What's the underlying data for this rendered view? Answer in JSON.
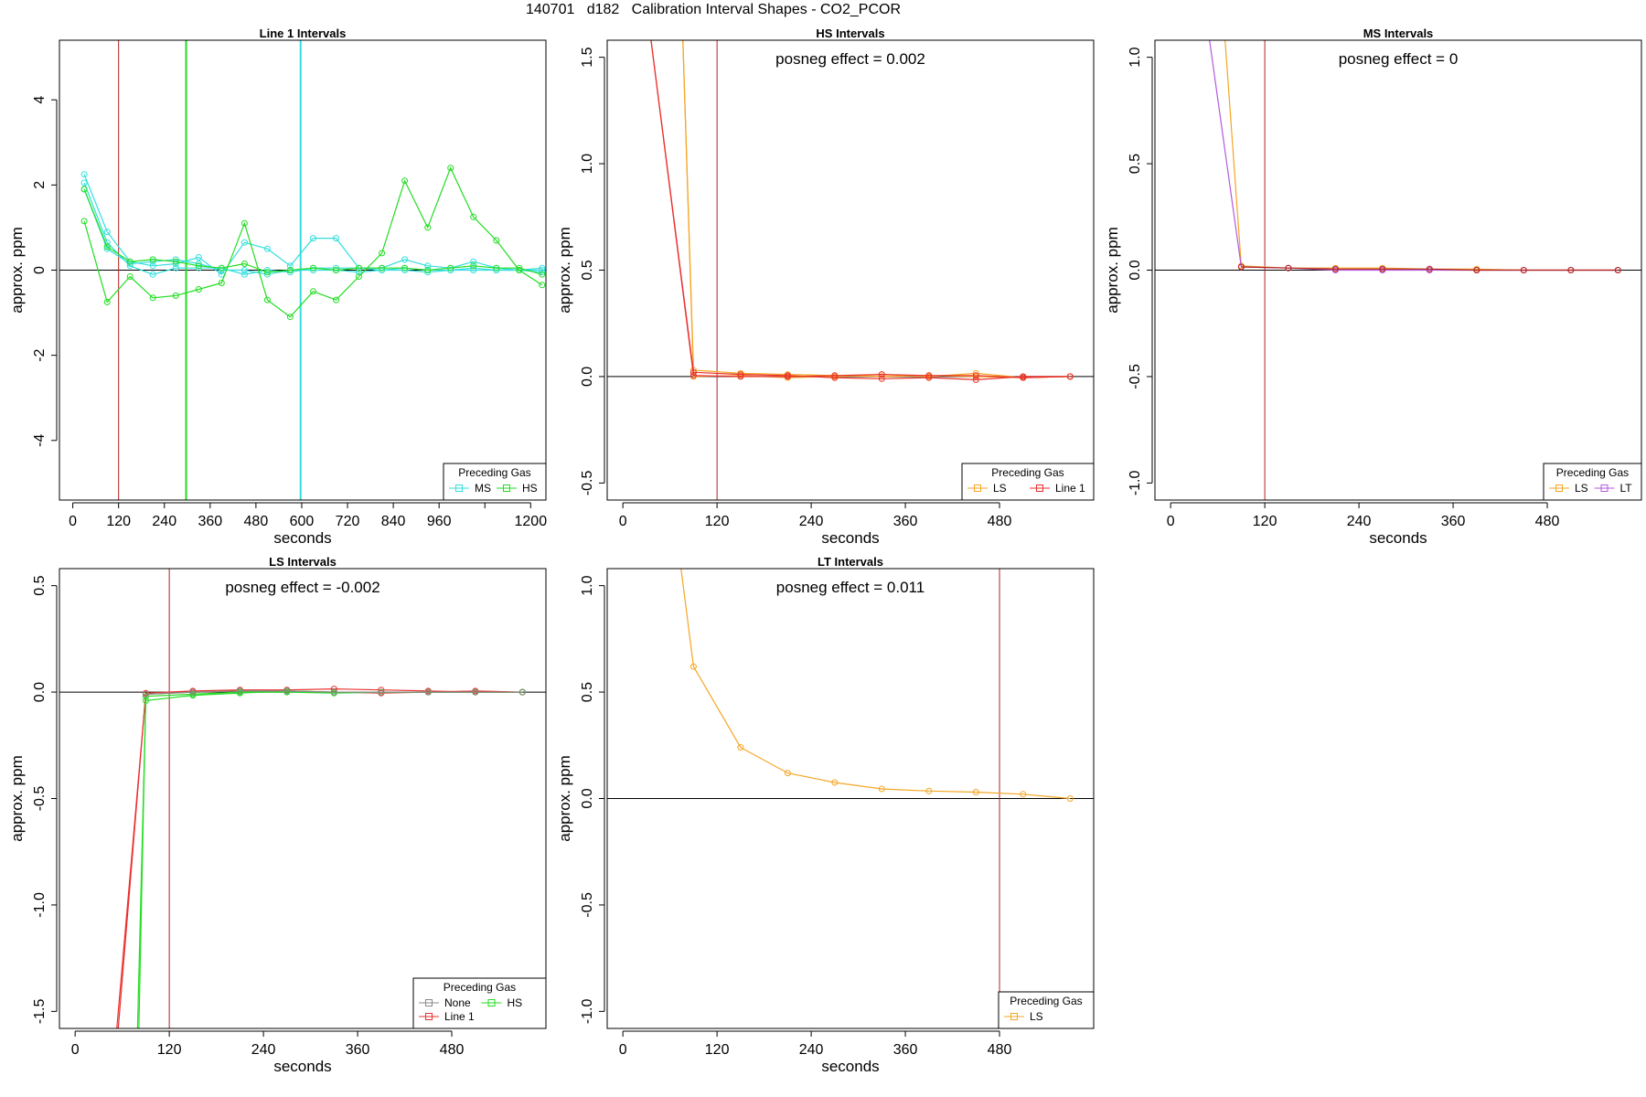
{
  "figure": {
    "main_title": "140701   d182   Calibration Interval Shapes - CO2_PCOR"
  },
  "colors": {
    "red": "#e8312f",
    "green": "#22dd22",
    "cyan": "#33dddd",
    "orange": "#f5a623",
    "purple": "#b35ae0",
    "gray": "#888888",
    "marker": "#b22222"
  },
  "chart_data": [
    {
      "id": "line1",
      "type": "line",
      "title": "Line 1 Intervals",
      "xlabel": "seconds",
      "ylabel": "approx. ppm",
      "xlim": [
        -35,
        1240
      ],
      "ylim": [
        -5.4,
        5.4
      ],
      "xticks": [
        0,
        120,
        240,
        360,
        480,
        600,
        720,
        840,
        960,
        1080,
        1200
      ],
      "xtick_labels": [
        "0",
        "120",
        "240",
        "360",
        "480",
        "600",
        "720",
        "840",
        "960",
        "",
        "1200"
      ],
      "yticks": [
        -4,
        -2,
        0,
        2,
        4
      ],
      "hline": 0,
      "vlines": [
        {
          "x": 120,
          "color": "#b22222",
          "width": 1
        },
        {
          "x": 297,
          "color": "#22dd22",
          "width": 2
        },
        {
          "x": 597,
          "color": "#33dddd",
          "width": 2
        }
      ],
      "posneg": "",
      "legend": {
        "title": "Preceding Gas",
        "position": "bottom-right",
        "entries": [
          {
            "label": "MS",
            "color": "#33dddd"
          },
          {
            "label": "HS",
            "color": "#22dd22"
          }
        ]
      },
      "series": [
        {
          "color": "#33dddd",
          "x": [
            30,
            90,
            150,
            210,
            270,
            330,
            390,
            450,
            510,
            570,
            630,
            690,
            750,
            810,
            870,
            930,
            990,
            1050,
            1110,
            1170,
            1230
          ],
          "y": [
            2.25,
            0.9,
            0.2,
            0.1,
            0.15,
            0.3,
            -0.1,
            0.65,
            0.5,
            0.1,
            0.75,
            0.75,
            0.05,
            0.05,
            0.25,
            0.1,
            0.05,
            0.2,
            0.05,
            0.0,
            0.0
          ]
        },
        {
          "color": "#33dddd",
          "x": [
            30,
            90,
            150,
            210,
            270,
            330,
            390,
            450,
            510,
            570,
            630,
            690,
            750,
            810,
            870,
            930,
            990,
            1050,
            1110,
            1170,
            1230
          ],
          "y": [
            2.05,
            0.65,
            0.1,
            -0.1,
            0.05,
            0.05,
            0.05,
            -0.1,
            0.0,
            -0.05,
            0.05,
            0.05,
            0.05,
            0.0,
            0.05,
            0.0,
            0.0,
            0.05,
            0.0,
            0.0,
            -0.05
          ]
        },
        {
          "color": "#33dddd",
          "x": [
            30,
            90,
            150,
            210,
            270,
            330,
            390,
            450,
            510,
            570,
            630,
            690,
            750,
            810,
            870,
            930,
            990,
            1050,
            1110,
            1170,
            1230
          ],
          "y": [
            1.9,
            0.5,
            0.15,
            0.2,
            0.25,
            0.15,
            0.0,
            0.0,
            -0.1,
            0.0,
            0.0,
            0.0,
            -0.05,
            0.0,
            0.0,
            -0.05,
            0.0,
            0.0,
            0.0,
            0.0,
            0.05
          ]
        },
        {
          "color": "#22dd22",
          "x": [
            30,
            90,
            150,
            210,
            270,
            330,
            390,
            450,
            510,
            570,
            630,
            690,
            750,
            810,
            870,
            930,
            990,
            1050,
            1110,
            1170,
            1230
          ],
          "y": [
            1.15,
            -0.75,
            -0.15,
            -0.65,
            -0.6,
            -0.45,
            -0.3,
            1.1,
            -0.7,
            -1.1,
            -0.5,
            -0.7,
            -0.15,
            0.4,
            2.1,
            1.0,
            2.4,
            1.25,
            0.7,
            0.0,
            -0.35
          ]
        },
        {
          "color": "#22dd22",
          "x": [
            30,
            90,
            150,
            210,
            270,
            330,
            390,
            450,
            510,
            570,
            630,
            690,
            750,
            810,
            870,
            930,
            990,
            1050,
            1110,
            1170,
            1230
          ],
          "y": [
            1.9,
            0.55,
            0.2,
            0.25,
            0.2,
            0.1,
            0.05,
            0.15,
            -0.05,
            0.0,
            0.05,
            0.0,
            0.05,
            0.05,
            0.05,
            0.0,
            0.05,
            0.1,
            0.05,
            0.05,
            -0.1
          ]
        }
      ]
    },
    {
      "id": "hs",
      "type": "line",
      "title": "HS Intervals",
      "xlabel": "seconds",
      "ylabel": "approx. ppm",
      "xlim": [
        -20,
        600
      ],
      "ylim": [
        -0.58,
        1.58
      ],
      "xticks": [
        0,
        120,
        240,
        360,
        480
      ],
      "xtick_labels": [
        "0",
        "120",
        "240",
        "360",
        "480"
      ],
      "yticks": [
        -0.5,
        0.0,
        0.5,
        1.0,
        1.5
      ],
      "ytick_labels": [
        "-0.5",
        "0.0",
        "0.5",
        "1.0",
        "1.5"
      ],
      "hline": 0,
      "vlines": [
        {
          "x": 120,
          "color": "#b22222",
          "width": 1
        }
      ],
      "posneg": "posneg effect = 0.002",
      "legend": {
        "title": "Preceding Gas",
        "position": "bottom-right",
        "entries": [
          {
            "label": "LS",
            "color": "#f5a623"
          },
          {
            "label": "Line 1",
            "color": "#e8312f"
          }
        ]
      },
      "series": [
        {
          "color": "#f5a623",
          "x": [
            75,
            90,
            150,
            210,
            270,
            330,
            390,
            450,
            510,
            570
          ],
          "y": [
            1.75,
            0.03,
            0.015,
            0.01,
            0.005,
            0.0,
            0.005,
            0.0,
            -0.005,
            0.0
          ]
        },
        {
          "color": "#f5a623",
          "x": [
            75,
            90,
            150,
            210,
            270,
            330,
            390,
            450,
            510,
            570
          ],
          "y": [
            1.75,
            0.0,
            0.005,
            -0.005,
            0.0,
            0.01,
            0.0,
            0.015,
            -0.005,
            0.0
          ]
        },
        {
          "color": "#e8312f",
          "x": [
            30,
            90,
            150,
            210,
            270,
            330,
            390,
            450,
            510,
            570
          ],
          "y": [
            1.75,
            0.02,
            0.01,
            0.005,
            -0.005,
            -0.01,
            -0.005,
            -0.015,
            0.0,
            0.0
          ]
        },
        {
          "color": "#e8312f",
          "x": [
            30,
            90,
            150,
            210,
            270,
            330,
            390,
            450,
            510,
            570
          ],
          "y": [
            1.75,
            0.005,
            0.0,
            0.0,
            0.005,
            0.01,
            0.005,
            0.005,
            -0.005,
            0.0
          ]
        }
      ]
    },
    {
      "id": "ms",
      "type": "line",
      "title": "MS Intervals",
      "xlabel": "seconds",
      "ylabel": "approx. ppm",
      "xlim": [
        -20,
        600
      ],
      "ylim": [
        -1.08,
        1.08
      ],
      "xticks": [
        0,
        120,
        240,
        360,
        480
      ],
      "xtick_labels": [
        "0",
        "120",
        "240",
        "360",
        "480"
      ],
      "yticks": [
        -1.0,
        -0.5,
        0.0,
        0.5,
        1.0
      ],
      "ytick_labels": [
        "-1.0",
        "-0.5",
        "0.0",
        "0.5",
        "1.0"
      ],
      "hline": 0,
      "vlines": [
        {
          "x": 120,
          "color": "#b22222",
          "width": 1
        }
      ],
      "posneg": "posneg effect = 0",
      "legend": {
        "title": "Preceding Gas",
        "position": "bottom-right",
        "entries": [
          {
            "label": "LS",
            "color": "#f5a623"
          },
          {
            "label": "LT",
            "color": "#b35ae0"
          }
        ]
      },
      "series": [
        {
          "color": "#f5a623",
          "x": [
            67,
            90,
            150,
            210,
            270,
            330,
            390,
            450,
            510,
            570
          ],
          "y": [
            1.2,
            0.02,
            0.01,
            0.01,
            0.01,
            0.005,
            0.005,
            0.0,
            0.0,
            0.0
          ]
        },
        {
          "color": "#b35ae0",
          "x": [
            45,
            90,
            150,
            210,
            270,
            330,
            390,
            450,
            510,
            570
          ],
          "y": [
            1.2,
            0.015,
            0.01,
            0.0,
            0.0,
            0.0,
            0.0,
            0.0,
            0.0,
            0.0
          ]
        },
        {
          "color": "#b22222",
          "x": [
            90,
            150,
            210,
            270,
            330,
            390,
            450,
            510,
            570
          ],
          "y": [
            0.015,
            0.01,
            0.005,
            0.005,
            0.005,
            0.0,
            0.0,
            0.0,
            0.0
          ]
        }
      ]
    },
    {
      "id": "ls",
      "type": "line",
      "title": "LS Intervals",
      "xlabel": "seconds",
      "ylabel": "approx. ppm",
      "xlim": [
        -20,
        600
      ],
      "ylim": [
        -1.58,
        0.58
      ],
      "xticks": [
        0,
        120,
        240,
        360,
        480
      ],
      "xtick_labels": [
        "0",
        "120",
        "240",
        "360",
        "480"
      ],
      "yticks": [
        -1.5,
        -1.0,
        -0.5,
        0.0,
        0.5
      ],
      "ytick_labels": [
        "-1.5",
        "-1.0",
        "-0.5",
        "0.0",
        "0.5"
      ],
      "hline": 0,
      "vlines": [
        {
          "x": 120,
          "color": "#b22222",
          "width": 1
        }
      ],
      "posneg": "posneg effect = -0.002",
      "legend": {
        "title": "Preceding Gas",
        "position": "bottom-right",
        "entries": [
          {
            "label": "None",
            "color": "#888888"
          },
          {
            "label": "HS",
            "color": "#22dd22"
          },
          {
            "label": "Line 1",
            "color": "#e8312f"
          }
        ]
      },
      "series": [
        {
          "color": "#e8312f",
          "x": [
            50,
            90,
            150,
            210,
            270,
            330,
            390,
            450,
            510,
            570
          ],
          "y": [
            -1.8,
            -0.005,
            0.005,
            0.01,
            0.01,
            0.015,
            0.01,
            0.005,
            0.0,
            0.0
          ]
        },
        {
          "color": "#e8312f",
          "x": [
            48,
            90,
            150,
            210,
            270,
            330,
            390,
            450,
            510,
            570
          ],
          "y": [
            -1.8,
            -0.01,
            0.0,
            0.005,
            0.005,
            0.0,
            -0.005,
            0.0,
            0.005,
            0.0
          ]
        },
        {
          "color": "#22dd22",
          "x": [
            78,
            90,
            150,
            210,
            270,
            330,
            390,
            450,
            510,
            570
          ],
          "y": [
            -1.8,
            -0.04,
            -0.015,
            -0.005,
            0.005,
            0.0,
            0.0,
            0.0,
            0.0,
            0.0
          ]
        },
        {
          "color": "#22dd22",
          "x": [
            80,
            90,
            150,
            210,
            270,
            330,
            390,
            450,
            510,
            570
          ],
          "y": [
            -1.8,
            -0.02,
            -0.01,
            0.0,
            0.0,
            -0.005,
            0.0,
            0.0,
            0.0,
            0.0
          ]
        },
        {
          "color": "#888888",
          "x": [
            90,
            150,
            210,
            270,
            330,
            390,
            450,
            510,
            570
          ],
          "y": [
            -0.01,
            0.0,
            0.005,
            0.005,
            0.0,
            0.0,
            0.0,
            0.0,
            0.0
          ]
        }
      ]
    },
    {
      "id": "lt",
      "type": "line",
      "title": "LT Intervals",
      "xlabel": "seconds",
      "ylabel": "approx. ppm",
      "xlim": [
        -20,
        600
      ],
      "ylim": [
        -1.08,
        1.08
      ],
      "xticks": [
        0,
        120,
        240,
        360,
        480
      ],
      "xtick_labels": [
        "0",
        "120",
        "240",
        "360",
        "480"
      ],
      "yticks": [
        -1.0,
        -0.5,
        0.0,
        0.5,
        1.0
      ],
      "ytick_labels": [
        "-1.0",
        "-0.5",
        "0.0",
        "0.5",
        "1.0"
      ],
      "hline": 0,
      "vlines": [
        {
          "x": 480,
          "color": "#b22222",
          "width": 1
        }
      ],
      "posneg": "posneg effect = 0.011",
      "legend": {
        "title": "Preceding Gas",
        "position": "bottom-right",
        "entries": [
          {
            "label": "LS",
            "color": "#f5a623"
          }
        ]
      },
      "series": [
        {
          "color": "#f5a623",
          "x": [
            70,
            90,
            150,
            210,
            270,
            330,
            390,
            450,
            510,
            570
          ],
          "y": [
            1.2,
            0.62,
            0.24,
            0.12,
            0.075,
            0.045,
            0.035,
            0.03,
            0.02,
            0.0
          ]
        }
      ]
    }
  ]
}
